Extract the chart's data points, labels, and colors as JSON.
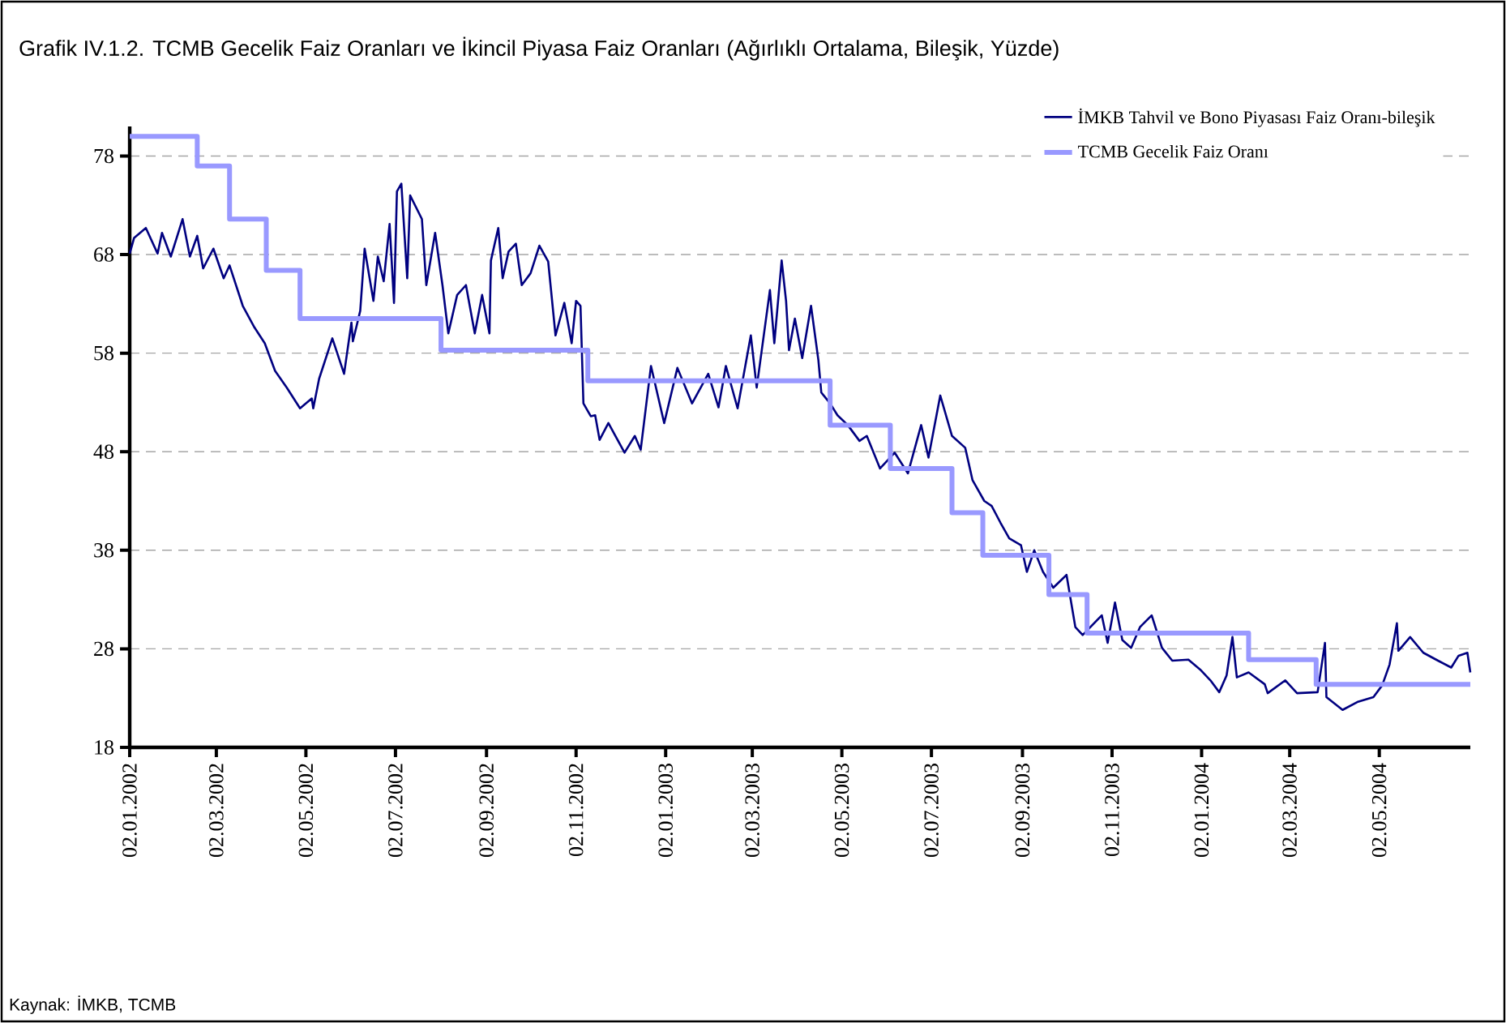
{
  "chart_data": {
    "type": "line",
    "title": "Grafik IV.1.2. TCMB Gecelik Faiz Oranları ve İkincil Piyasa Faiz Oranları (Ağırlıklı Ortalama, Bileşik, Yüzde)",
    "annotations": [
      "Kaynak: İMKB, TCMB"
    ],
    "xlim": [
      "2002-01-02",
      "2004-07-03"
    ],
    "xticks": [
      {
        "value": "2002-01-02",
        "label": "02.01.2002"
      },
      {
        "value": "2002-03-02",
        "label": "02.03.2002"
      },
      {
        "value": "2002-05-02",
        "label": "02.05.2002"
      },
      {
        "value": "2002-07-02",
        "label": "02.07.2002"
      },
      {
        "value": "2002-09-02",
        "label": "02.09.2002"
      },
      {
        "value": "2002-11-02",
        "label": "02.11.2002"
      },
      {
        "value": "2003-01-02",
        "label": "02.01.2003"
      },
      {
        "value": "2003-03-02",
        "label": "02.03.2003"
      },
      {
        "value": "2003-05-02",
        "label": "02.05.2003"
      },
      {
        "value": "2003-07-02",
        "label": "02.07.2003"
      },
      {
        "value": "2003-09-02",
        "label": "02.09.2003"
      },
      {
        "value": "2003-11-02",
        "label": "02.11.2003"
      },
      {
        "value": "2004-01-02",
        "label": "02.01.2004"
      },
      {
        "value": "2004-03-02",
        "label": "02.03.2004"
      },
      {
        "value": "2004-05-02",
        "label": "02.05.2004"
      }
    ],
    "ylim": [
      18,
      81
    ],
    "yticks": [
      18,
      28,
      38,
      48,
      58,
      68,
      78
    ],
    "grid": "y",
    "legend": "top right",
    "marker": "none",
    "series": [
      {
        "name": "İMKB Tahvil ve Bono Piyasası Faiz Oranı-bileşik",
        "color": "#000080",
        "x": [
          "2002-01-02",
          "2002-01-05",
          "2002-01-13",
          "2002-01-21",
          "2002-01-24",
          "2002-01-30",
          "2002-02-07",
          "2002-02-12",
          "2002-02-17",
          "2002-02-21",
          "2002-02-28",
          "2002-03-07",
          "2002-03-11",
          "2002-03-20",
          "2002-03-28",
          "2002-04-04",
          "2002-04-11",
          "2002-04-19",
          "2002-04-28",
          "2002-05-06",
          "2002-05-07",
          "2002-05-11",
          "2002-05-20",
          "2002-05-28",
          "2002-06-02",
          "2002-06-03",
          "2002-06-08",
          "2002-06-11",
          "2002-06-17",
          "2002-06-20",
          "2002-06-24",
          "2002-06-28",
          "2002-07-01",
          "2002-07-03",
          "2002-07-06",
          "2002-07-10",
          "2002-07-12",
          "2002-07-20",
          "2002-07-23",
          "2002-07-29",
          "2002-08-03",
          "2002-08-07",
          "2002-08-13",
          "2002-08-19",
          "2002-08-25",
          "2002-08-30",
          "2002-09-04",
          "2002-09-05",
          "2002-09-10",
          "2002-09-13",
          "2002-09-17",
          "2002-09-22",
          "2002-09-26",
          "2002-10-02",
          "2002-10-08",
          "2002-10-14",
          "2002-10-19",
          "2002-10-25",
          "2002-10-30",
          "2002-11-02",
          "2002-11-05",
          "2002-11-07",
          "2002-11-12",
          "2002-11-15",
          "2002-11-18",
          "2002-11-24",
          "2002-12-05",
          "2002-12-12",
          "2002-12-16",
          "2002-12-23",
          "2003-01-01",
          "2003-01-10",
          "2003-01-20",
          "2003-01-31",
          "2003-02-07",
          "2003-02-12",
          "2003-02-20",
          "2003-03-01",
          "2003-03-05",
          "2003-03-14",
          "2003-03-17",
          "2003-03-22",
          "2003-03-25",
          "2003-03-27",
          "2003-03-31",
          "2003-04-05",
          "2003-04-11",
          "2003-04-16",
          "2003-04-18",
          "2003-04-24",
          "2003-04-29",
          "2003-05-06",
          "2003-05-14",
          "2003-05-19",
          "2003-05-28",
          "2003-06-07",
          "2003-06-16",
          "2003-06-25",
          "2003-06-30",
          "2003-07-08",
          "2003-07-16",
          "2003-07-25",
          "2003-07-30",
          "2003-08-07",
          "2003-08-12",
          "2003-08-18",
          "2003-08-24",
          "2003-09-01",
          "2003-09-05",
          "2003-09-10",
          "2003-09-16",
          "2003-09-23",
          "2003-10-02",
          "2003-10-08",
          "2003-10-13",
          "2003-10-26",
          "2003-10-30",
          "2003-11-04",
          "2003-11-09",
          "2003-11-15",
          "2003-11-21",
          "2003-11-29",
          "2003-12-06",
          "2003-12-13",
          "2003-12-24",
          "2004-01-01",
          "2004-01-08",
          "2004-01-14",
          "2004-01-19",
          "2004-01-23",
          "2004-01-26",
          "2004-02-03",
          "2004-02-14",
          "2004-02-16",
          "2004-02-28",
          "2004-03-07",
          "2004-03-21",
          "2004-03-26",
          "2004-03-27",
          "2004-04-07",
          "2004-04-17",
          "2004-04-28",
          "2004-05-04",
          "2004-05-09",
          "2004-05-14",
          "2004-05-15",
          "2004-05-23",
          "2004-06-01",
          "2004-06-11",
          "2004-06-20",
          "2004-06-25",
          "2004-07-01",
          "2004-07-03"
        ],
        "values": [
          68.1,
          69.7,
          70.7,
          68.1,
          70.2,
          67.8,
          71.6,
          67.8,
          69.9,
          66.6,
          68.6,
          65.6,
          66.9,
          62.8,
          60.6,
          59.0,
          56.2,
          54.5,
          52.4,
          53.4,
          52.4,
          55.4,
          59.5,
          55.9,
          61.1,
          59.2,
          62.3,
          68.6,
          63.3,
          67.8,
          65.3,
          71.1,
          63.1,
          74.4,
          75.2,
          65.6,
          74.0,
          71.6,
          64.9,
          70.2,
          64.9,
          60.0,
          63.9,
          64.9,
          60.0,
          63.9,
          60.0,
          67.4,
          70.7,
          65.6,
          68.3,
          69.1,
          64.9,
          66.1,
          68.9,
          67.3,
          59.8,
          63.1,
          59.0,
          63.3,
          62.8,
          52.9,
          51.6,
          51.7,
          49.2,
          50.9,
          47.9,
          49.6,
          48.2,
          56.7,
          50.9,
          56.5,
          52.9,
          55.9,
          52.5,
          56.7,
          52.4,
          59.8,
          54.5,
          64.4,
          59.0,
          67.4,
          63.3,
          58.3,
          61.5,
          57.5,
          62.8,
          57.3,
          54.0,
          52.9,
          51.7,
          50.7,
          49.1,
          49.6,
          46.3,
          47.9,
          45.8,
          50.7,
          47.4,
          53.7,
          49.6,
          48.4,
          45.1,
          43.0,
          42.5,
          40.8,
          39.2,
          38.5,
          35.8,
          38.0,
          35.8,
          34.2,
          35.5,
          30.2,
          29.4,
          31.4,
          28.6,
          32.7,
          28.9,
          28.1,
          30.2,
          31.4,
          28.1,
          26.8,
          26.9,
          25.9,
          24.8,
          23.6,
          25.3,
          29.2,
          25.1,
          25.6,
          24.4,
          23.5,
          24.8,
          23.5,
          23.6,
          28.6,
          23.1,
          21.8,
          22.6,
          23.1,
          24.3,
          26.4,
          30.6,
          27.8,
          29.2,
          27.6,
          26.8,
          26.1,
          27.3,
          27.6,
          25.6
        ]
      },
      {
        "name": "TCMB Gecelik Faiz Oranı",
        "color": "#9999ff",
        "type": "step",
        "x": [
          "2002-01-02",
          "2002-02-17",
          "2002-03-11",
          "2002-04-05",
          "2002-04-28",
          "2002-08-02",
          "2002-11-10",
          "2003-04-24",
          "2003-06-04",
          "2003-07-16",
          "2003-08-06",
          "2003-09-20",
          "2003-10-16",
          "2004-02-03",
          "2004-03-20",
          "2004-07-03"
        ],
        "values": [
          80,
          77,
          71.6,
          66.4,
          61.5,
          58.3,
          55.2,
          50.7,
          46.3,
          41.8,
          37.5,
          33.5,
          29.6,
          26.9,
          24.4,
          24.4
        ]
      }
    ]
  }
}
